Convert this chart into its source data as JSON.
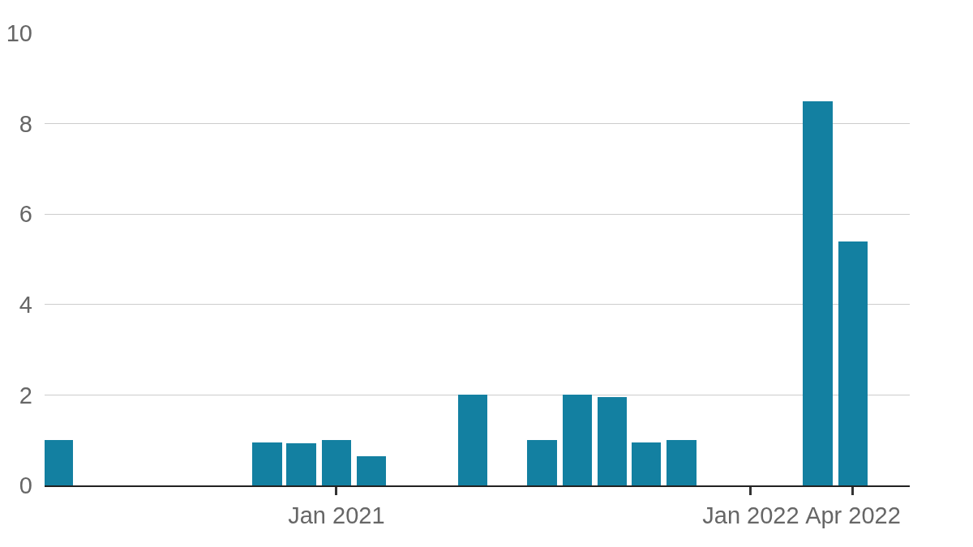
{
  "chart_data": {
    "type": "bar",
    "x": [
      "2020-05",
      "2020-11",
      "2020-12",
      "2021-01",
      "2021-02",
      "2021-05",
      "2021-07",
      "2021-08",
      "2021-09",
      "2021-10",
      "2021-11",
      "2022-03",
      "2022-04"
    ],
    "values": [
      1,
      0.95,
      0.93,
      1,
      0.65,
      2,
      1,
      2,
      1.95,
      0.95,
      1,
      8.5,
      5.4
    ],
    "color": "#1380a1",
    "xlim": [
      "2020-04-19",
      "2022-05-21"
    ],
    "xticks": [
      {
        "value": "2021-01",
        "label": "Jan 2021"
      },
      {
        "value": "2022-01",
        "label": "Jan 2022"
      },
      {
        "value": "2022-04",
        "label": "Apr 2022"
      }
    ],
    "ylim": [
      0,
      10
    ],
    "yticks": [
      0,
      2,
      4,
      6,
      8,
      10
    ],
    "grid": "y"
  }
}
